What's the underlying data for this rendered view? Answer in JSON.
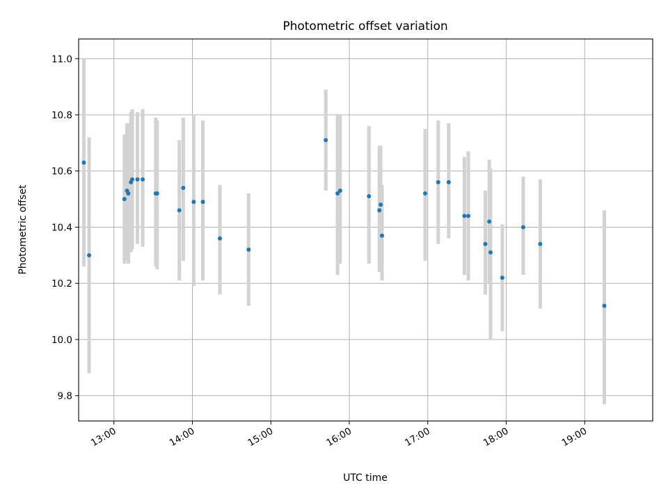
{
  "chart_data": {
    "type": "scatter",
    "title": "Photometric offset variation",
    "xlabel": "UTC time",
    "ylabel": "Photometric offset",
    "x_range": [
      "12:33",
      "19:52"
    ],
    "ylim": [
      9.71,
      11.07
    ],
    "x_ticks": [
      "13:00",
      "14:00",
      "15:00",
      "16:00",
      "17:00",
      "18:00",
      "19:00"
    ],
    "y_ticks": [
      9.8,
      10.0,
      10.2,
      10.4,
      10.6,
      10.8,
      11.0
    ],
    "grid": true,
    "legend": false,
    "colors": {
      "point": "#1f77b4",
      "error_bar": "#d3d3d3",
      "grid": "#b0b0b0"
    },
    "points": [
      {
        "x": "12:37",
        "y": 10.63,
        "yerr_low": 10.26,
        "yerr_high": 11.0
      },
      {
        "x": "12:41",
        "y": 10.3,
        "yerr_low": 9.88,
        "yerr_high": 10.72
      },
      {
        "x": "13:08",
        "y": 10.5,
        "yerr_low": 10.27,
        "yerr_high": 10.73
      },
      {
        "x": "13:10",
        "y": 10.53,
        "yerr_low": 10.28,
        "yerr_high": 10.77
      },
      {
        "x": "13:11",
        "y": 10.52,
        "yerr_low": 10.27,
        "yerr_high": 10.77
      },
      {
        "x": "13:13",
        "y": 10.56,
        "yerr_low": 10.31,
        "yerr_high": 10.81
      },
      {
        "x": "13:14",
        "y": 10.57,
        "yerr_low": 10.32,
        "yerr_high": 10.82
      },
      {
        "x": "13:18",
        "y": 10.57,
        "yerr_low": 10.34,
        "yerr_high": 10.81
      },
      {
        "x": "13:22",
        "y": 10.57,
        "yerr_low": 10.33,
        "yerr_high": 10.82
      },
      {
        "x": "13:32",
        "y": 10.52,
        "yerr_low": 10.26,
        "yerr_high": 10.79
      },
      {
        "x": "13:33",
        "y": 10.52,
        "yerr_low": 10.25,
        "yerr_high": 10.78
      },
      {
        "x": "13:50",
        "y": 10.46,
        "yerr_low": 10.21,
        "yerr_high": 10.71
      },
      {
        "x": "13:53",
        "y": 10.54,
        "yerr_low": 10.28,
        "yerr_high": 10.79
      },
      {
        "x": "14:01",
        "y": 10.49,
        "yerr_low": 10.19,
        "yerr_high": 10.8
      },
      {
        "x": "14:08",
        "y": 10.49,
        "yerr_low": 10.21,
        "yerr_high": 10.78
      },
      {
        "x": "14:21",
        "y": 10.36,
        "yerr_low": 10.16,
        "yerr_high": 10.55
      },
      {
        "x": "14:43",
        "y": 10.32,
        "yerr_low": 10.12,
        "yerr_high": 10.52
      },
      {
        "x": "15:42",
        "y": 10.71,
        "yerr_low": 10.53,
        "yerr_high": 10.89
      },
      {
        "x": "15:51",
        "y": 10.52,
        "yerr_low": 10.23,
        "yerr_high": 10.8
      },
      {
        "x": "15:53",
        "y": 10.53,
        "yerr_low": 10.27,
        "yerr_high": 10.8
      },
      {
        "x": "16:15",
        "y": 10.51,
        "yerr_low": 10.27,
        "yerr_high": 10.76
      },
      {
        "x": "16:23",
        "y": 10.46,
        "yerr_low": 10.24,
        "yerr_high": 10.69
      },
      {
        "x": "16:24",
        "y": 10.48,
        "yerr_low": 10.25,
        "yerr_high": 10.69
      },
      {
        "x": "16:25",
        "y": 10.37,
        "yerr_low": 10.21,
        "yerr_high": 10.55
      },
      {
        "x": "16:58",
        "y": 10.52,
        "yerr_low": 10.28,
        "yerr_high": 10.75
      },
      {
        "x": "17:08",
        "y": 10.56,
        "yerr_low": 10.34,
        "yerr_high": 10.78
      },
      {
        "x": "17:16",
        "y": 10.56,
        "yerr_low": 10.36,
        "yerr_high": 10.77
      },
      {
        "x": "17:28",
        "y": 10.44,
        "yerr_low": 10.23,
        "yerr_high": 10.65
      },
      {
        "x": "17:31",
        "y": 10.44,
        "yerr_low": 10.21,
        "yerr_high": 10.67
      },
      {
        "x": "17:44",
        "y": 10.34,
        "yerr_low": 10.16,
        "yerr_high": 10.53
      },
      {
        "x": "17:47",
        "y": 10.42,
        "yerr_low": 10.2,
        "yerr_high": 10.64
      },
      {
        "x": "17:48",
        "y": 10.31,
        "yerr_low": 10.0,
        "yerr_high": 10.61
      },
      {
        "x": "17:57",
        "y": 10.22,
        "yerr_low": 10.03,
        "yerr_high": 10.41
      },
      {
        "x": "18:13",
        "y": 10.4,
        "yerr_low": 10.23,
        "yerr_high": 10.58
      },
      {
        "x": "18:26",
        "y": 10.34,
        "yerr_low": 10.11,
        "yerr_high": 10.57
      },
      {
        "x": "19:15",
        "y": 10.12,
        "yerr_low": 9.77,
        "yerr_high": 10.46
      }
    ]
  }
}
